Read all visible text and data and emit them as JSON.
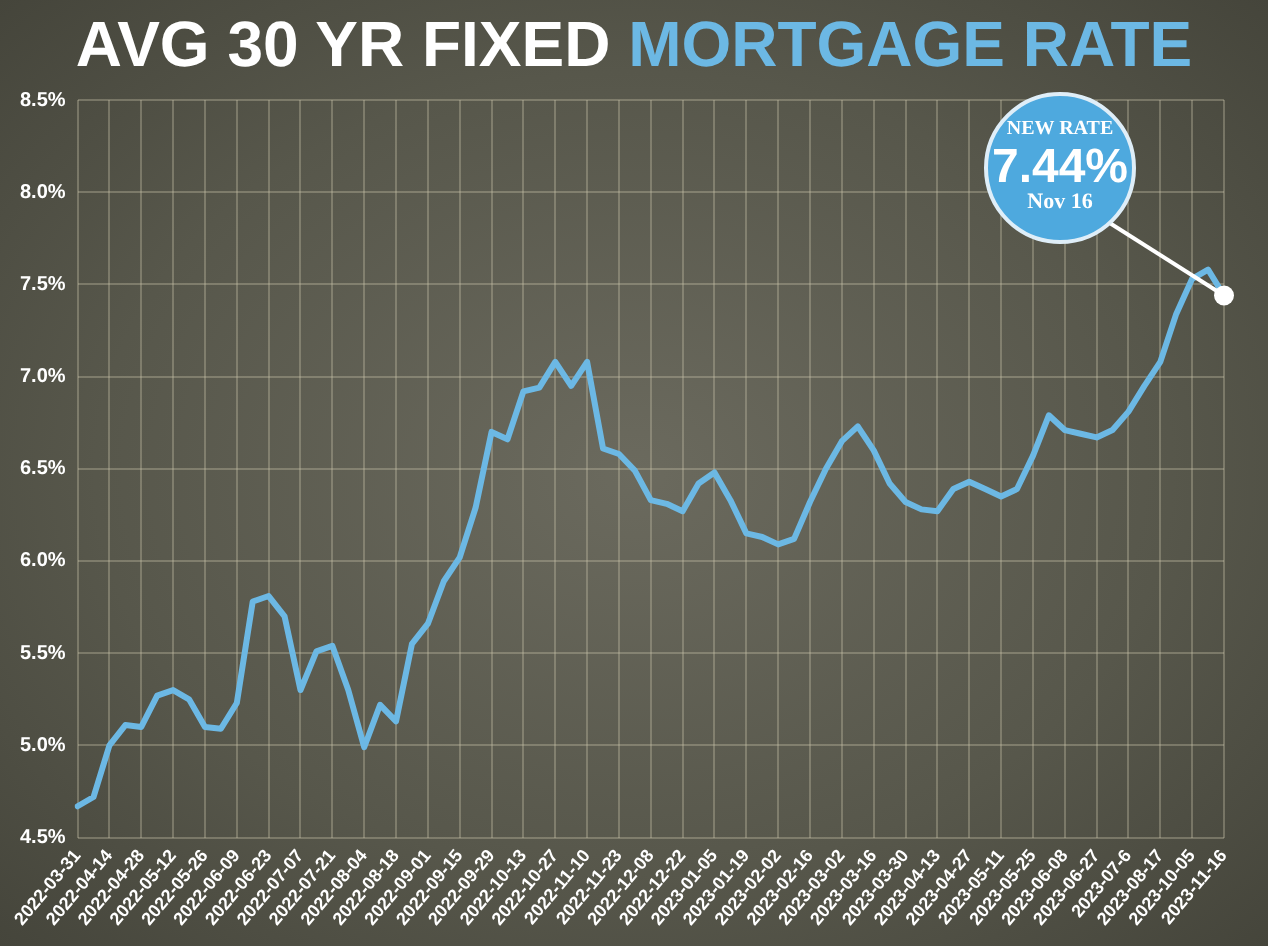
{
  "chart_data": {
    "type": "line",
    "title": "AVG 30 YR FIXED MORTGAGE RATE",
    "categories": [
      "2022-03-31",
      null,
      "2022-04-14",
      null,
      "2022-04-28",
      null,
      "2022-05-12",
      null,
      "2022-05-26",
      null,
      "2022-06-09",
      null,
      "2022-06-23",
      null,
      "2022-07-07",
      null,
      "2022-07-21",
      null,
      "2022-08-04",
      null,
      "2022-08-18",
      null,
      "2022-09-01",
      null,
      "2022-09-15",
      null,
      "2022-09-29",
      null,
      "2022-10-13",
      null,
      "2022-10-27",
      null,
      "2022-11-10",
      null,
      "2022-11-23",
      null,
      "2022-12-08",
      null,
      "2022-12-22",
      null,
      "2023-01-05",
      null,
      "2023-01-19",
      null,
      "2023-02-02",
      null,
      "2023-02-16",
      null,
      "2023-03-02",
      null,
      "2023-03-16",
      null,
      "2023-03-30",
      null,
      "2023-04-13",
      null,
      "2023-04-27",
      null,
      "2023-05-11",
      null,
      "2023-05-25",
      null,
      "2023-06-08",
      null,
      "2023-06-27",
      null,
      "2023-07-6",
      null,
      "2023-08-17",
      null,
      "2023-10-05",
      null,
      "2023-11-16"
    ],
    "series": [
      {
        "color": "#6cb8e4",
        "values": [
          4.67,
          4.72,
          5.0,
          5.11,
          5.1,
          5.27,
          5.3,
          5.25,
          5.1,
          5.09,
          5.23,
          5.78,
          5.81,
          5.7,
          5.3,
          5.51,
          5.54,
          5.3,
          4.99,
          5.22,
          5.13,
          5.55,
          5.66,
          5.89,
          6.02,
          6.29,
          6.7,
          6.66,
          6.92,
          6.94,
          7.08,
          6.95,
          7.08,
          6.61,
          6.58,
          6.49,
          6.33,
          6.31,
          6.27,
          6.42,
          6.48,
          6.33,
          6.15,
          6.13,
          6.09,
          6.12,
          6.32,
          6.5,
          6.65,
          6.73,
          6.6,
          6.42,
          6.32,
          6.28,
          6.27,
          6.39,
          6.43,
          6.39,
          6.35,
          6.39,
          6.57,
          6.79,
          6.71,
          6.69,
          6.67,
          6.71,
          6.81,
          6.95,
          7.08,
          7.34,
          7.53,
          7.58,
          7.44
        ]
      }
    ],
    "ylim": [
      4.5,
      8.5
    ],
    "yticks": [
      {
        "value": 4.5,
        "label": "4.5%"
      },
      {
        "value": 5.0,
        "label": "5.0%"
      },
      {
        "value": 5.5,
        "label": "5.5%"
      },
      {
        "value": 6.0,
        "label": "6.0%"
      },
      {
        "value": 6.5,
        "label": "6.5%"
      },
      {
        "value": 7.0,
        "label": "7.0%"
      },
      {
        "value": 7.5,
        "label": "7.5%"
      },
      {
        "value": 8.0,
        "label": "8.0%"
      },
      {
        "value": 8.5,
        "label": "8.5%"
      }
    ],
    "grid": true,
    "legend": false,
    "marker": "none",
    "line_style": "solid",
    "annotations": [
      {
        "text": "NEW RATE\n7.44%\nNov 16",
        "x": "2023-11-16",
        "y": 7.44
      }
    ]
  }
}
